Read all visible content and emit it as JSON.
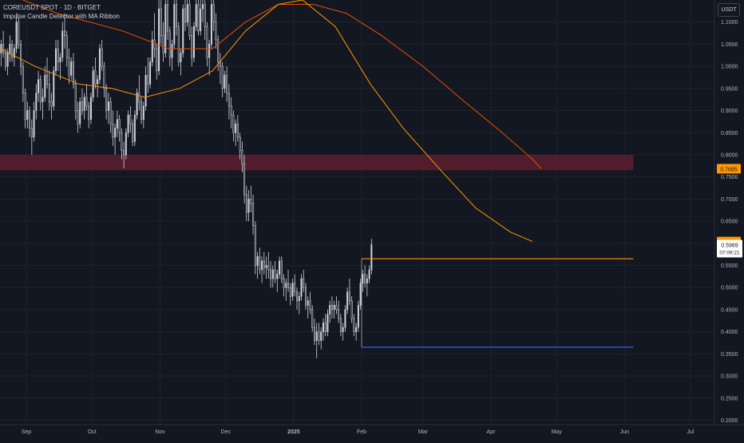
{
  "header": {
    "symbol_line": "COREUSDT SPOT · 1D · BITGET",
    "indicator_line": "Impulse Candle Detector with MA Ribbon"
  },
  "currency": "USDT",
  "colors": {
    "background": "#131722",
    "candle": "#d1d4dc",
    "ma_orange": "#ff9800",
    "ma_dark_orange": "#e65100",
    "resistance_line": "#ff9800",
    "support_line": "#2962ff",
    "zone": "#5d1f2e"
  },
  "price_labels": {
    "ma_long": {
      "value": "0.7685",
      "color": "#ff9800"
    },
    "ma_short": {
      "value": "0.6039",
      "color": "#ff9800"
    },
    "last": {
      "value": "0.5969",
      "countdown": "07:09:21"
    }
  },
  "chart_data": {
    "type": "candlestick",
    "title": "COREUSDT SPOT · 1D · BITGET",
    "y_ticks": [
      "1.1000",
      "1.0500",
      "1.0000",
      "0.9500",
      "0.9000",
      "0.8500",
      "0.8000",
      "0.7500",
      "0.7000",
      "0.6500",
      "0.6000",
      "0.5500",
      "0.5000",
      "0.4500",
      "0.4000",
      "0.3500",
      "0.3000",
      "0.2500",
      "0.2000"
    ],
    "ylim": [
      0.19,
      1.15
    ],
    "x_ticks": [
      {
        "label": "Sep",
        "x": "2024-09-01"
      },
      {
        "label": "Oct",
        "x": "2024-10-01"
      },
      {
        "label": "Nov",
        "x": "2024-11-01"
      },
      {
        "label": "Dec",
        "x": "2024-12-01"
      },
      {
        "label": "2025",
        "x": "2025-01-01"
      },
      {
        "label": "Feb",
        "x": "2025-02-01"
      },
      {
        "label": "Mar",
        "x": "2025-03-01"
      },
      {
        "label": "Apr",
        "x": "2025-04-01"
      },
      {
        "label": "May",
        "x": "2025-05-01"
      },
      {
        "label": "Jun",
        "x": "2025-06-01"
      },
      {
        "label": "Jul",
        "x": "2025-07-01"
      }
    ],
    "xlim": [
      "2024-08-20",
      "2025-07-12"
    ],
    "candles_start": "2024-08-20",
    "candles": [
      [
        1.03,
        1.06,
        1.0,
        1.05
      ],
      [
        1.05,
        1.08,
        1.02,
        1.03
      ],
      [
        1.03,
        1.04,
        0.99,
        1.0
      ],
      [
        1.0,
        1.04,
        0.98,
        1.03
      ],
      [
        1.03,
        1.07,
        1.01,
        1.05
      ],
      [
        1.05,
        1.06,
        1.01,
        1.02
      ],
      [
        1.02,
        1.05,
        1.0,
        1.04
      ],
      [
        1.04,
        1.12,
        1.03,
        1.1
      ],
      [
        1.1,
        1.11,
        1.04,
        1.05
      ],
      [
        1.05,
        1.06,
        0.98,
        1.0
      ],
      [
        1.0,
        1.01,
        0.92,
        0.94
      ],
      [
        0.94,
        0.95,
        0.86,
        0.88
      ],
      [
        0.88,
        0.92,
        0.86,
        0.9
      ],
      [
        0.9,
        0.91,
        0.84,
        0.86
      ],
      [
        0.86,
        0.88,
        0.8,
        0.84
      ],
      [
        0.84,
        0.92,
        0.83,
        0.9
      ],
      [
        0.9,
        0.96,
        0.88,
        0.94
      ],
      [
        0.94,
        0.99,
        0.92,
        0.97
      ],
      [
        0.97,
        0.98,
        0.9,
        0.92
      ],
      [
        0.92,
        0.95,
        0.88,
        0.93
      ],
      [
        0.93,
        1.0,
        0.92,
        0.98
      ],
      [
        0.98,
        1.02,
        0.95,
        0.96
      ],
      [
        0.96,
        0.99,
        0.9,
        0.92
      ],
      [
        0.92,
        0.94,
        0.88,
        0.91
      ],
      [
        0.91,
        1.0,
        0.9,
        0.99
      ],
      [
        0.99,
        1.06,
        0.98,
        1.04
      ],
      [
        1.04,
        1.06,
        0.99,
        1.01
      ],
      [
        1.01,
        1.03,
        0.97,
        1.02
      ],
      [
        1.02,
        1.1,
        1.01,
        1.08
      ],
      [
        1.08,
        1.12,
        1.04,
        1.07
      ],
      [
        1.07,
        1.08,
        1.0,
        1.02
      ],
      [
        1.02,
        1.04,
        0.96,
        0.98
      ],
      [
        0.98,
        1.02,
        0.97,
        1.01
      ],
      [
        1.01,
        1.03,
        0.95,
        0.96
      ],
      [
        0.96,
        0.97,
        0.88,
        0.9
      ],
      [
        0.9,
        0.92,
        0.85,
        0.87
      ],
      [
        0.87,
        0.93,
        0.86,
        0.92
      ],
      [
        0.92,
        0.95,
        0.89,
        0.9
      ],
      [
        0.9,
        0.94,
        0.88,
        0.93
      ],
      [
        0.93,
        0.96,
        0.9,
        0.91
      ],
      [
        0.91,
        0.92,
        0.86,
        0.88
      ],
      [
        0.88,
        0.94,
        0.87,
        0.93
      ],
      [
        0.93,
        1.0,
        0.92,
        0.99
      ],
      [
        0.99,
        1.02,
        0.95,
        0.96
      ],
      [
        0.96,
        0.98,
        0.93,
        0.97
      ],
      [
        0.97,
        1.05,
        0.96,
        1.04
      ],
      [
        1.04,
        1.06,
        0.99,
        1.0
      ],
      [
        1.0,
        1.01,
        0.93,
        0.95
      ],
      [
        0.95,
        0.96,
        0.88,
        0.9
      ],
      [
        0.9,
        0.94,
        0.87,
        0.92
      ],
      [
        0.92,
        0.93,
        0.85,
        0.87
      ],
      [
        0.87,
        0.9,
        0.82,
        0.84
      ],
      [
        0.84,
        0.87,
        0.8,
        0.86
      ],
      [
        0.86,
        0.9,
        0.84,
        0.88
      ],
      [
        0.88,
        0.89,
        0.83,
        0.85
      ],
      [
        0.85,
        0.86,
        0.79,
        0.81
      ],
      [
        0.81,
        0.83,
        0.77,
        0.8
      ],
      [
        0.8,
        0.86,
        0.79,
        0.85
      ],
      [
        0.85,
        0.9,
        0.84,
        0.89
      ],
      [
        0.89,
        0.91,
        0.85,
        0.87
      ],
      [
        0.87,
        0.88,
        0.82,
        0.83
      ],
      [
        0.83,
        0.9,
        0.82,
        0.89
      ],
      [
        0.89,
        0.95,
        0.88,
        0.94
      ],
      [
        0.94,
        0.98,
        0.9,
        0.92
      ],
      [
        0.92,
        0.93,
        0.87,
        0.88
      ],
      [
        0.88,
        0.92,
        0.86,
        0.91
      ],
      [
        0.91,
        1.0,
        0.9,
        0.98
      ],
      [
        0.98,
        1.02,
        0.94,
        0.96
      ],
      [
        0.96,
        1.02,
        0.95,
        1.01
      ],
      [
        1.01,
        1.08,
        1.0,
        1.06
      ],
      [
        1.06,
        1.12,
        1.02,
        1.04
      ],
      [
        1.04,
        1.05,
        0.97,
        0.99
      ],
      [
        0.99,
        1.15,
        0.98,
        1.13
      ],
      [
        1.13,
        1.15,
        1.05,
        1.07
      ],
      [
        1.07,
        1.1,
        1.01,
        1.03
      ],
      [
        1.03,
        1.15,
        1.02,
        1.14
      ],
      [
        1.14,
        1.15,
        1.06,
        1.08
      ],
      [
        1.08,
        1.09,
        1.0,
        1.02
      ],
      [
        1.02,
        1.06,
        0.99,
        1.05
      ],
      [
        1.05,
        1.15,
        1.04,
        1.14
      ],
      [
        1.14,
        1.15,
        1.07,
        1.09
      ],
      [
        1.09,
        1.1,
        1.0,
        1.01
      ],
      [
        1.01,
        1.04,
        0.98,
        1.03
      ],
      [
        1.03,
        1.14,
        1.02,
        1.13
      ],
      [
        1.13,
        1.15,
        1.08,
        1.1
      ],
      [
        1.1,
        1.15,
        1.09,
        1.14
      ],
      [
        1.14,
        1.15,
        1.06,
        1.07
      ],
      [
        1.07,
        1.09,
        1.0,
        1.02
      ],
      [
        1.02,
        1.1,
        1.01,
        1.09
      ],
      [
        1.09,
        1.15,
        1.08,
        1.14
      ],
      [
        1.14,
        1.15,
        1.07,
        1.08
      ],
      [
        1.08,
        1.15,
        1.07,
        1.13
      ],
      [
        1.13,
        1.15,
        1.1,
        1.14
      ],
      [
        1.14,
        1.15,
        1.06,
        1.09
      ],
      [
        1.09,
        1.1,
        1.0,
        1.02
      ],
      [
        1.02,
        1.06,
        0.98,
        1.05
      ],
      [
        1.05,
        1.15,
        1.04,
        1.14
      ],
      [
        1.14,
        1.15,
        1.08,
        1.1
      ],
      [
        1.1,
        1.12,
        1.04,
        1.06
      ],
      [
        1.06,
        1.07,
        0.99,
        1.01
      ],
      [
        1.01,
        1.03,
        0.96,
        1.0
      ],
      [
        1.0,
        1.01,
        0.93,
        0.95
      ],
      [
        0.95,
        0.99,
        0.94,
        0.98
      ],
      [
        0.98,
        1.0,
        0.92,
        0.94
      ],
      [
        0.94,
        0.96,
        0.88,
        0.91
      ],
      [
        0.91,
        0.93,
        0.86,
        0.89
      ],
      [
        0.89,
        0.9,
        0.83,
        0.85
      ],
      [
        0.85,
        0.88,
        0.82,
        0.87
      ],
      [
        0.87,
        0.89,
        0.83,
        0.84
      ],
      [
        0.84,
        0.85,
        0.79,
        0.81
      ],
      [
        0.81,
        0.83,
        0.76,
        0.78
      ],
      [
        0.78,
        0.8,
        0.69,
        0.71
      ],
      [
        0.71,
        0.73,
        0.65,
        0.67
      ],
      [
        0.67,
        0.72,
        0.65,
        0.7
      ],
      [
        0.7,
        0.73,
        0.67,
        0.69
      ],
      [
        0.69,
        0.71,
        0.62,
        0.64
      ],
      [
        0.64,
        0.65,
        0.53,
        0.55
      ],
      [
        0.55,
        0.58,
        0.52,
        0.57
      ],
      [
        0.57,
        0.59,
        0.53,
        0.54
      ],
      [
        0.54,
        0.57,
        0.51,
        0.56
      ],
      [
        0.56,
        0.58,
        0.53,
        0.545
      ],
      [
        0.545,
        0.57,
        0.52,
        0.55
      ],
      [
        0.55,
        0.58,
        0.52,
        0.54
      ],
      [
        0.54,
        0.56,
        0.5,
        0.52
      ],
      [
        0.52,
        0.55,
        0.5,
        0.54
      ],
      [
        0.54,
        0.56,
        0.51,
        0.52
      ],
      [
        0.52,
        0.54,
        0.49,
        0.53
      ],
      [
        0.53,
        0.57,
        0.52,
        0.56
      ],
      [
        0.56,
        0.57,
        0.51,
        0.52
      ],
      [
        0.52,
        0.53,
        0.48,
        0.5
      ],
      [
        0.5,
        0.52,
        0.47,
        0.51
      ],
      [
        0.51,
        0.54,
        0.49,
        0.5
      ],
      [
        0.5,
        0.51,
        0.46,
        0.48
      ],
      [
        0.48,
        0.52,
        0.47,
        0.51
      ],
      [
        0.51,
        0.53,
        0.48,
        0.49
      ],
      [
        0.49,
        0.5,
        0.45,
        0.47
      ],
      [
        0.47,
        0.49,
        0.44,
        0.48
      ],
      [
        0.48,
        0.53,
        0.47,
        0.52
      ],
      [
        0.52,
        0.54,
        0.49,
        0.5
      ],
      [
        0.5,
        0.51,
        0.45,
        0.46
      ],
      [
        0.46,
        0.48,
        0.43,
        0.47
      ],
      [
        0.47,
        0.49,
        0.44,
        0.45
      ],
      [
        0.45,
        0.46,
        0.4,
        0.41
      ],
      [
        0.41,
        0.43,
        0.37,
        0.38
      ],
      [
        0.38,
        0.42,
        0.34,
        0.4
      ],
      [
        0.4,
        0.42,
        0.37,
        0.38
      ],
      [
        0.38,
        0.41,
        0.36,
        0.4
      ],
      [
        0.4,
        0.43,
        0.38,
        0.42
      ],
      [
        0.42,
        0.44,
        0.39,
        0.4
      ],
      [
        0.4,
        0.45,
        0.39,
        0.44
      ],
      [
        0.44,
        0.47,
        0.42,
        0.46
      ],
      [
        0.46,
        0.48,
        0.43,
        0.45
      ],
      [
        0.45,
        0.47,
        0.43,
        0.46
      ],
      [
        0.46,
        0.48,
        0.44,
        0.45
      ],
      [
        0.45,
        0.47,
        0.42,
        0.43
      ],
      [
        0.43,
        0.44,
        0.39,
        0.4
      ],
      [
        0.4,
        0.42,
        0.38,
        0.41
      ],
      [
        0.41,
        0.46,
        0.4,
        0.45
      ],
      [
        0.45,
        0.5,
        0.44,
        0.49
      ],
      [
        0.49,
        0.52,
        0.46,
        0.47
      ],
      [
        0.47,
        0.48,
        0.42,
        0.43
      ],
      [
        0.43,
        0.44,
        0.39,
        0.4
      ],
      [
        0.4,
        0.42,
        0.38,
        0.41
      ],
      [
        0.41,
        0.47,
        0.4,
        0.46
      ],
      [
        0.46,
        0.52,
        0.45,
        0.51
      ],
      [
        0.51,
        0.54,
        0.49,
        0.53
      ],
      [
        0.53,
        0.55,
        0.5,
        0.51
      ],
      [
        0.51,
        0.53,
        0.48,
        0.52
      ],
      [
        0.52,
        0.55,
        0.51,
        0.54
      ],
      [
        0.54,
        0.61,
        0.53,
        0.597
      ]
    ],
    "ma_long": [
      {
        "x": "2024-08-20",
        "y": 1.17
      },
      {
        "x": "2024-09-15",
        "y": 1.12
      },
      {
        "x": "2024-10-15",
        "y": 1.08
      },
      {
        "x": "2024-11-05",
        "y": 1.04
      },
      {
        "x": "2024-11-25",
        "y": 1.04
      },
      {
        "x": "2024-12-10",
        "y": 1.1
      },
      {
        "x": "2024-12-25",
        "y": 1.14
      },
      {
        "x": "2025-01-10",
        "y": 1.14
      },
      {
        "x": "2025-01-25",
        "y": 1.12
      },
      {
        "x": "2025-02-10",
        "y": 1.07
      },
      {
        "x": "2025-03-01",
        "y": 1.0
      },
      {
        "x": "2025-03-20",
        "y": 0.92
      },
      {
        "x": "2025-04-05",
        "y": 0.855
      },
      {
        "x": "2025-04-20",
        "y": 0.79
      },
      {
        "x": "2025-04-24",
        "y": 0.7685
      }
    ],
    "ma_short": [
      {
        "x": "2024-08-20",
        "y": 1.04
      },
      {
        "x": "2024-09-05",
        "y": 1.0
      },
      {
        "x": "2024-09-25",
        "y": 0.96
      },
      {
        "x": "2024-10-10",
        "y": 0.95
      },
      {
        "x": "2024-10-25",
        "y": 0.93
      },
      {
        "x": "2024-11-10",
        "y": 0.95
      },
      {
        "x": "2024-11-25",
        "y": 0.99
      },
      {
        "x": "2024-12-10",
        "y": 1.08
      },
      {
        "x": "2024-12-25",
        "y": 1.14
      },
      {
        "x": "2025-01-05",
        "y": 1.15
      },
      {
        "x": "2025-01-20",
        "y": 1.09
      },
      {
        "x": "2025-02-05",
        "y": 0.96
      },
      {
        "x": "2025-02-20",
        "y": 0.86
      },
      {
        "x": "2025-03-10",
        "y": 0.76
      },
      {
        "x": "2025-03-25",
        "y": 0.68
      },
      {
        "x": "2025-04-10",
        "y": 0.625
      },
      {
        "x": "2025-04-20",
        "y": 0.6039
      }
    ],
    "zone": {
      "from": "2024-08-20",
      "to": "2025-06-05",
      "y_top": 0.8,
      "y_bottom": 0.765
    },
    "resistance": {
      "from": "2025-02-01",
      "to": "2025-06-05",
      "y": 0.565
    },
    "support": {
      "from": "2025-02-01",
      "to": "2025-06-05",
      "y": 0.365
    }
  }
}
